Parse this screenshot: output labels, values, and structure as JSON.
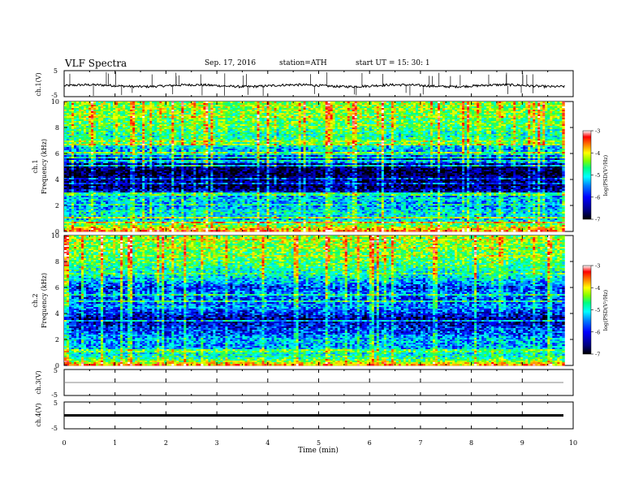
{
  "header": {
    "title": "VLF  Spectra",
    "date": "Sep. 17, 2016",
    "station": "station=ATH",
    "start_ut": "start  UT  =    15: 30: 1"
  },
  "chart_data": [
    {
      "type": "line",
      "panel": "ch1-waveform",
      "ylabel": "ch.1(V)",
      "ylim": [
        -5,
        5
      ],
      "yticks": [
        "5",
        "-5"
      ],
      "x_range_min": [
        0,
        9.83
      ],
      "baseline_v": -0.8,
      "color": "#000000"
    },
    {
      "type": "heatmap",
      "panel": "ch1-spectrogram",
      "ylabel_line1": "ch.1",
      "ylabel_line2": "Frequency  (kHz)",
      "ylim_khz": [
        0,
        10
      ],
      "yticks": [
        "0",
        "2",
        "4",
        "6",
        "8",
        "10"
      ],
      "x_range_min": [
        0,
        9.83
      ],
      "colorbar": {
        "label": "log(PSD(V²/Hz)",
        "ticks": [
          "-3",
          "-4",
          "-5",
          "-6",
          "-7"
        ],
        "range": [
          -7,
          -3
        ]
      },
      "frequency_profile_khz_logpsd": [
        [
          0,
          -3.6
        ],
        [
          0.5,
          -4.8
        ],
        [
          1,
          -5.6
        ],
        [
          1.5,
          -5.3
        ],
        [
          2,
          -5.8
        ],
        [
          2.5,
          -5.4
        ],
        [
          3,
          -6.3
        ],
        [
          3.5,
          -6.8
        ],
        [
          4,
          -6.6
        ],
        [
          4.5,
          -6.9
        ],
        [
          5,
          -6.7
        ],
        [
          5.5,
          -6.5
        ],
        [
          6,
          -5.7
        ],
        [
          6.5,
          -5.5
        ],
        [
          7,
          -5.3
        ],
        [
          7.5,
          -5.1
        ],
        [
          8,
          -4.9
        ],
        [
          8.5,
          -4.8
        ],
        [
          9,
          -4.7
        ],
        [
          9.5,
          -4.6
        ],
        [
          10,
          -4.6
        ]
      ]
    },
    {
      "type": "heatmap",
      "panel": "ch2-spectrogram",
      "ylabel_line1": "ch.2",
      "ylabel_line2": "Frequency  (kHz)",
      "ylim_khz": [
        0,
        10
      ],
      "yticks": [
        "0",
        "2",
        "4",
        "6",
        "8",
        "10"
      ],
      "x_range_min": [
        0,
        9.83
      ],
      "colorbar": {
        "label": "log(PSD(V²/Hz)",
        "ticks": [
          "-3",
          "-4",
          "-5",
          "-6",
          "-7"
        ],
        "range": [
          -7,
          -3
        ]
      },
      "frequency_profile_khz_logpsd": [
        [
          0,
          -3.8
        ],
        [
          0.5,
          -5.0
        ],
        [
          1,
          -5.4
        ],
        [
          1.5,
          -5.7
        ],
        [
          2,
          -5.6
        ],
        [
          2.5,
          -6.0
        ],
        [
          3,
          -6.2
        ],
        [
          3.5,
          -6.6
        ],
        [
          4,
          -6.2
        ],
        [
          4.5,
          -5.7
        ],
        [
          5,
          -6.1
        ],
        [
          5.5,
          -5.8
        ],
        [
          6,
          -6.1
        ],
        [
          6.5,
          -5.6
        ],
        [
          7,
          -5.3
        ],
        [
          7.5,
          -5.1
        ],
        [
          8,
          -4.9
        ],
        [
          8.5,
          -4.8
        ],
        [
          9,
          -4.7
        ],
        [
          9.5,
          -4.6
        ],
        [
          10,
          -4.6
        ]
      ]
    },
    {
      "type": "line",
      "panel": "ch3-waveform",
      "ylabel": "ch.3(V)",
      "ylim": [
        -5,
        5
      ],
      "yticks": [
        "5",
        "-5"
      ],
      "x_range_min": [
        0,
        9.83
      ],
      "baseline_v": 0,
      "color": "#888888"
    },
    {
      "type": "line",
      "panel": "ch4-waveform",
      "ylabel": "ch.4(V)",
      "ylim": [
        -5,
        5
      ],
      "yticks": [
        "5",
        "-5"
      ],
      "x_range_min": [
        0,
        9.83
      ],
      "baseline_v": 0,
      "color": "#000000"
    }
  ],
  "x_axis": {
    "label": "Time  (min)",
    "xlim": [
      0,
      10
    ],
    "ticks": [
      "0",
      "1",
      "2",
      "3",
      "4",
      "5",
      "6",
      "7",
      "8",
      "9",
      "10"
    ]
  },
  "colors": {
    "colormap": [
      "#000000",
      "#000080",
      "#0000ff",
      "#0080ff",
      "#00ffff",
      "#00ff80",
      "#80ff00",
      "#ffff00",
      "#ff8000",
      "#ff0000",
      "#ffffff"
    ]
  }
}
